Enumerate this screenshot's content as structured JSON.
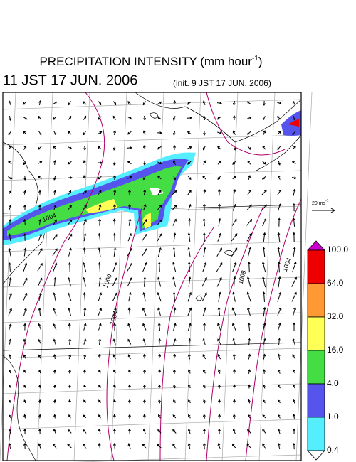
{
  "header": {
    "title": "PRECIPITATION INTENSITY (mm hour",
    "title_exponent": "-1",
    "title_close": ")",
    "valid_time": "11 JST 17 JUN. 2006",
    "init_time": "(init. 9 JST 17 JUN. 2006)"
  },
  "reference_vector": {
    "label": "20 ms",
    "exponent": "-1"
  },
  "map": {
    "contour_labels": [
      "1004",
      "1000",
      "1008",
      "1004",
      "1004"
    ]
  },
  "colorbar": {
    "labels": [
      "100.0",
      "64.0",
      "32.0",
      "16.0",
      "4.0",
      "1.0",
      "0.4"
    ],
    "colors": [
      "#cc00cc",
      "#ee0000",
      "#ff9933",
      "#ffff55",
      "#44dd44",
      "#5555ee",
      "#55eeff",
      "#ffffff"
    ]
  }
}
